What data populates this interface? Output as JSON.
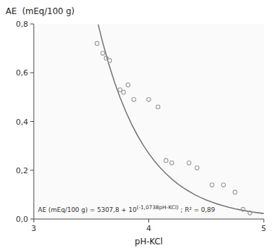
{
  "chart_data": {
    "type": "scatter",
    "xlabel": "pH-KCl",
    "ylabel": "AE  (mEq/100 g)",
    "annotations": [
      "AE (mEq/100 g) = 5307,8 + 10",
      "(-1,0738pH-KCl)",
      " ; R² = 0,89"
    ],
    "xlim": [
      3,
      5
    ],
    "ylim": [
      0.0,
      0.8
    ],
    "xticks": [
      3,
      4,
      5
    ],
    "yticks": [
      {
        "value": 0.0,
        "label": "0,0"
      },
      {
        "value": 0.2,
        "label": "0,2"
      },
      {
        "value": 0.4,
        "label": "0,4"
      },
      {
        "value": 0.6,
        "label": "0,6"
      },
      {
        "value": 0.8,
        "label": "0,8"
      }
    ],
    "grid": false,
    "series": [
      {
        "type": "scatter",
        "color": "#999999",
        "marker": "circle",
        "x": [
          3.55,
          3.6,
          3.63,
          3.66,
          3.75,
          3.78,
          3.82,
          3.87,
          4.0,
          4.08,
          4.15,
          4.2,
          4.35,
          4.42,
          4.55,
          4.65,
          4.75,
          4.82,
          4.88
        ],
        "values": [
          0.72,
          0.68,
          0.66,
          0.65,
          0.53,
          0.52,
          0.55,
          0.49,
          0.49,
          0.46,
          0.24,
          0.23,
          0.23,
          0.21,
          0.14,
          0.14,
          0.11,
          0.04,
          0.025
        ]
      },
      {
        "type": "line",
        "color": "#777777",
        "line_style": "solid",
        "x": [
          3.56,
          3.6,
          3.65,
          3.7,
          3.75,
          3.8,
          3.85,
          3.9,
          3.95,
          4.0,
          4.05,
          4.1,
          4.15,
          4.2,
          4.25,
          4.3,
          4.35,
          4.4,
          4.45,
          4.5,
          4.55,
          4.6,
          4.65,
          4.7,
          4.75,
          4.8,
          4.85,
          4.9,
          4.95,
          5.0
        ],
        "values": [
          0.79835,
          0.72316,
          0.63906,
          0.56475,
          0.49907,
          0.44104,
          0.38975,
          0.34442,
          0.30437,
          0.26897,
          0.2377,
          0.21005,
          0.18563,
          0.16404,
          0.14496,
          0.12811,
          0.11321,
          0.10004,
          0.08841,
          0.07813,
          0.06904,
          0.06101,
          0.05392,
          0.04765,
          0.04211,
          0.03721,
          0.03288,
          0.02906,
          0.02568,
          0.02269
        ]
      }
    ]
  }
}
